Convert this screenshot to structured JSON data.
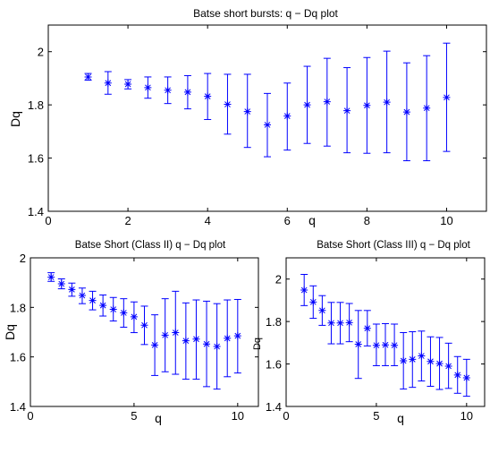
{
  "figure": {
    "background": "#ffffff",
    "series_color": "#0000ff"
  },
  "chart_data": [
    {
      "id": "top",
      "type": "scatter",
      "errorbars": true,
      "marker": "*",
      "title": "Batse short bursts: q − Dq plot",
      "xlabel": "q",
      "ylabel": "Dq",
      "xlim": [
        0,
        11
      ],
      "ylim": [
        1.4,
        2.1
      ],
      "xticks": [
        0,
        2,
        4,
        6,
        8,
        10
      ],
      "yticks": [
        1.4,
        1.6,
        1.8,
        2
      ],
      "x": [
        1,
        1.5,
        2,
        2.5,
        3,
        3.5,
        4,
        4.5,
        5,
        5.5,
        6,
        6.5,
        7,
        7.5,
        8,
        8.5,
        9,
        9.5,
        10
      ],
      "y": [
        1.905,
        1.882,
        1.878,
        1.865,
        1.855,
        1.848,
        1.832,
        1.802,
        1.775,
        1.725,
        1.758,
        1.8,
        1.812,
        1.778,
        1.798,
        1.81,
        1.773,
        1.788,
        1.828
      ],
      "err_low": [
        1.893,
        1.84,
        1.86,
        1.825,
        1.805,
        1.785,
        1.745,
        1.69,
        1.64,
        1.605,
        1.63,
        1.655,
        1.645,
        1.62,
        1.618,
        1.62,
        1.59,
        1.59,
        1.625
      ],
      "err_high": [
        1.918,
        1.925,
        1.895,
        1.905,
        1.905,
        1.91,
        1.918,
        1.915,
        1.915,
        1.843,
        1.882,
        1.945,
        1.975,
        1.94,
        1.978,
        2.002,
        1.958,
        1.985,
        2.032
      ]
    },
    {
      "id": "class2",
      "type": "scatter",
      "errorbars": true,
      "marker": "*",
      "title": "Batse Short (Class II) q − Dq plot",
      "xlabel": "q",
      "ylabel": "Dq",
      "xlim": [
        0,
        11
      ],
      "ylim": [
        1.4,
        2
      ],
      "xticks": [
        0,
        5,
        10
      ],
      "yticks": [
        1.4,
        1.6,
        1.8,
        2
      ],
      "x": [
        1,
        1.5,
        2,
        2.5,
        3,
        3.5,
        4,
        4.5,
        5,
        5.5,
        6,
        6.5,
        7,
        7.5,
        8,
        8.5,
        9,
        9.5,
        10
      ],
      "y": [
        1.922,
        1.895,
        1.872,
        1.848,
        1.828,
        1.808,
        1.792,
        1.778,
        1.762,
        1.728,
        1.648,
        1.688,
        1.698,
        1.665,
        1.672,
        1.652,
        1.642,
        1.675,
        1.685
      ],
      "err_low": [
        1.905,
        1.875,
        1.845,
        1.815,
        1.79,
        1.765,
        1.745,
        1.72,
        1.698,
        1.65,
        1.525,
        1.54,
        1.53,
        1.51,
        1.51,
        1.48,
        1.47,
        1.52,
        1.535
      ],
      "err_high": [
        1.94,
        1.915,
        1.898,
        1.878,
        1.865,
        1.85,
        1.84,
        1.835,
        1.822,
        1.805,
        1.77,
        1.835,
        1.865,
        1.818,
        1.83,
        1.825,
        1.815,
        1.83,
        1.832
      ]
    },
    {
      "id": "class3",
      "type": "scatter",
      "errorbars": true,
      "marker": "*",
      "title": "Batse Short (Class III) q − Dq plot",
      "xlabel": "q",
      "ylabel": "Dq",
      "xlim": [
        0,
        11
      ],
      "ylim": [
        1.4,
        2.1
      ],
      "xticks": [
        0,
        5,
        10
      ],
      "yticks": [
        1.4,
        1.6,
        1.8,
        2
      ],
      "x": [
        1,
        1.5,
        2,
        2.5,
        3,
        3.5,
        4,
        4.5,
        5,
        5.5,
        6,
        6.5,
        7,
        7.5,
        8,
        8.5,
        9,
        9.5,
        10
      ],
      "y": [
        1.948,
        1.892,
        1.852,
        1.793,
        1.793,
        1.795,
        1.693,
        1.768,
        1.688,
        1.69,
        1.688,
        1.615,
        1.622,
        1.638,
        1.612,
        1.602,
        1.59,
        1.548,
        1.535
      ],
      "err_low": [
        1.875,
        1.815,
        1.782,
        1.695,
        1.695,
        1.705,
        1.532,
        1.685,
        1.592,
        1.592,
        1.592,
        1.482,
        1.49,
        1.52,
        1.495,
        1.48,
        1.485,
        1.462,
        1.448
      ],
      "err_high": [
        2.022,
        1.968,
        1.922,
        1.89,
        1.89,
        1.885,
        1.852,
        1.852,
        1.788,
        1.79,
        1.788,
        1.748,
        1.752,
        1.755,
        1.728,
        1.725,
        1.698,
        1.635,
        1.622
      ]
    }
  ]
}
